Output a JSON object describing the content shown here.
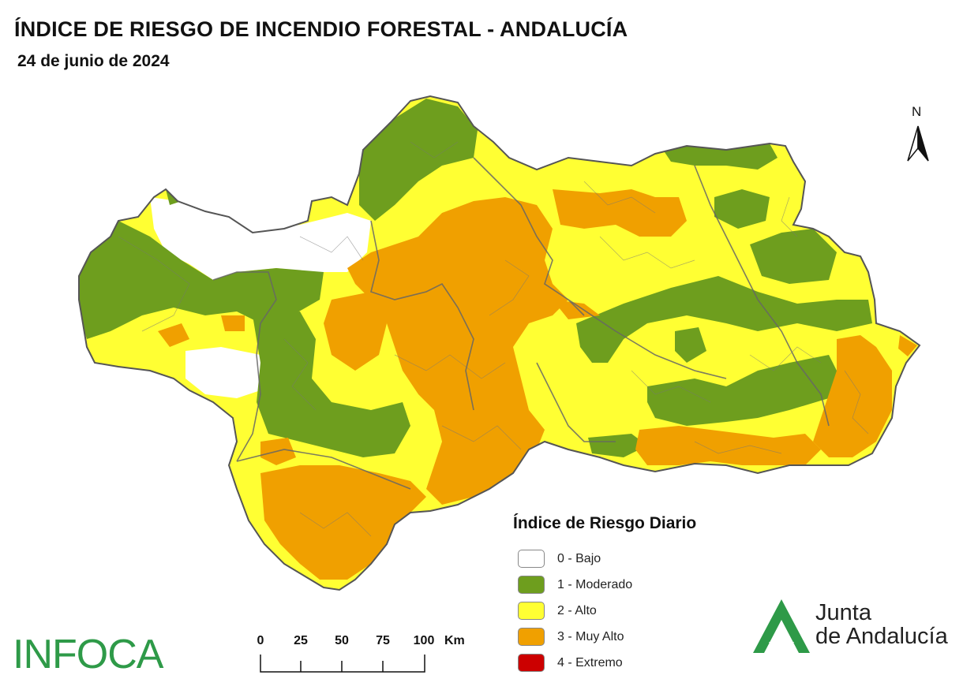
{
  "header": {
    "title": "ÍNDICE DE RIESGO DE INCENDIO FORESTAL - ANDALUCÍA",
    "date": "24 de junio de 2024"
  },
  "north_arrow": {
    "label": "N"
  },
  "legend": {
    "title": "Índice de Riesgo Diario",
    "items": [
      {
        "label": "0 - Bajo",
        "color": "#ffffff"
      },
      {
        "label": "1 - Moderado",
        "color": "#6e9e1e"
      },
      {
        "label": "2 - Alto",
        "color": "#ffff33"
      },
      {
        "label": "3 - Muy Alto",
        "color": "#f0a000"
      },
      {
        "label": "4 - Extremo",
        "color": "#cc0000"
      }
    ]
  },
  "scale_bar": {
    "ticks": [
      "0",
      "25",
      "50",
      "75",
      "100"
    ],
    "unit": "Km"
  },
  "logos": {
    "infoca": "INFOCA",
    "junta_line1": "Junta",
    "junta_line2": "de Andalucía"
  },
  "colors": {
    "bajo": "#ffffff",
    "moderado": "#6e9e1e",
    "alto": "#ffff33",
    "muy_alto": "#f0a000",
    "boundary": "#666666",
    "infoca_green": "#2e9a48"
  }
}
